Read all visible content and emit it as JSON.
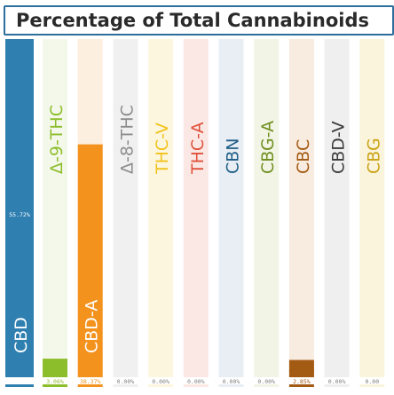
{
  "chart_data": {
    "type": "bar",
    "title": "Percentage of Total Cannabinoids",
    "xlabel": "",
    "ylabel": "",
    "ylim": [
      0,
      55.72
    ],
    "categories": [
      "CBD",
      "Δ-9-THC",
      "CBD-A",
      "Δ-8-THC",
      "THC-V",
      "THC-A",
      "CBN",
      "CBG-A",
      "CBC",
      "CBD-V",
      "CBG"
    ],
    "values": [
      55.72,
      3.06,
      38.37,
      0.0,
      0.0,
      0.0,
      0.0,
      0.0,
      2.85,
      0.0,
      0.0
    ],
    "value_labels": [
      "55.72%",
      "3.06%",
      "38.37%",
      "0.00%",
      "0.00%",
      "0.00%",
      "0.00%",
      "0.00%",
      "2.85%",
      "0.00%",
      "0.00"
    ],
    "colors": {
      "CBD": "#2f7fb0",
      "Δ-9-THC": "#8cbd2a",
      "CBD-A": "#f4921e",
      "Δ-8-THC": "#8c8c8c",
      "THC-V": "#f2c21a",
      "THC-A": "#e0503a",
      "CBN": "#1f5d87",
      "CBG-A": "#6e8e1e",
      "CBC": "#a35a12",
      "CBD-V": "#3a3a3a",
      "CBG": "#c9a215"
    },
    "track_colors": {
      "CBD": "#d6e6f0",
      "Δ-9-THC": "#f4f8ea",
      "CBD-A": "#fdefdf",
      "Δ-8-THC": "#f0f0f0",
      "THC-V": "#fdf6de",
      "THC-A": "#fbe8e4",
      "CBN": "#e8eef4",
      "CBG-A": "#f2f5e6",
      "CBC": "#f8ece0",
      "CBD-V": "#efefef",
      "CBG": "#fbf4dc"
    },
    "label_text_colors": {
      "CBD": "#ffffff",
      "Δ-9-THC": "#8cbd2a",
      "CBD-A": "#ffffff",
      "Δ-8-THC": "#8c8c8c",
      "THC-V": "#f2c21a",
      "THC-A": "#e0503a",
      "CBN": "#1f5d87",
      "CBG-A": "#6e8e1e",
      "CBC": "#a35a12",
      "CBD-V": "#3a3a3a",
      "CBG": "#c9a215"
    },
    "grid": false,
    "legend": "none"
  }
}
